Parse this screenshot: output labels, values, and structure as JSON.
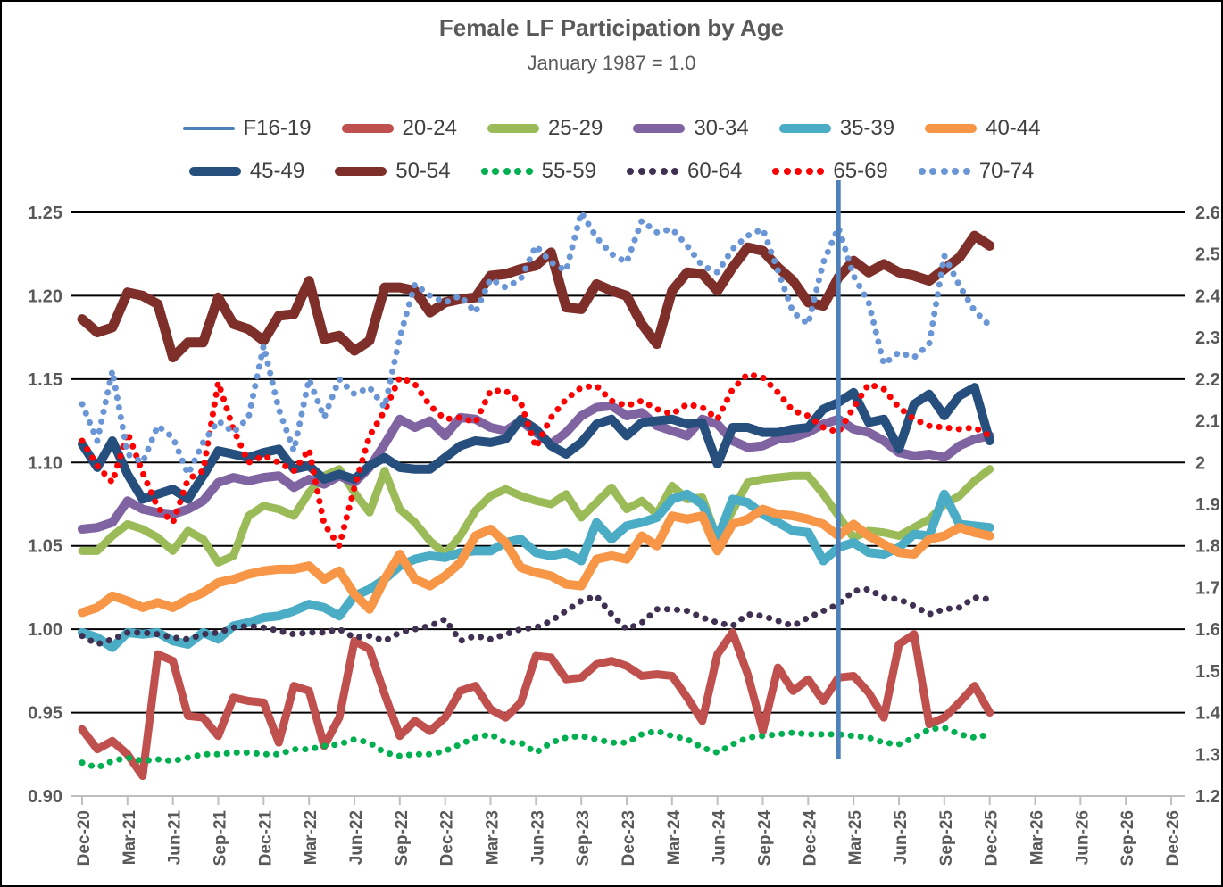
{
  "title": "Female LF Participation by Age",
  "subtitle": "January 1987 = 1.0",
  "axes": {
    "left_tick_labels": [
      "1.25",
      "1.20",
      "1.15",
      "1.10",
      "1.05",
      "1.00",
      "0.95",
      "0.90"
    ],
    "left_min": 0.9,
    "left_max": 1.25,
    "right_tick_labels": [
      "2.6",
      "2.5",
      "2.4",
      "2.3",
      "2.2",
      "2.1",
      "2",
      "1.9",
      "1.8",
      "1.7",
      "1.6",
      "1.5",
      "1.4",
      "1.3",
      "1.2"
    ],
    "x_tick_labels": [
      "Dec-20",
      "Mar-21",
      "Jun-21",
      "Sep-21",
      "Dec-21",
      "Mar-22",
      "Jun-22",
      "Sep-22",
      "Dec-22",
      "Mar-23",
      "Jun-23",
      "Sep-23",
      "Dec-23",
      "Mar-24",
      "Jun-24",
      "Sep-24",
      "Dec-24",
      "Mar-25",
      "Jun-25",
      "Sep-25",
      "Dec-25",
      "Mar-26",
      "Jun-26",
      "Sep-26",
      "Dec-26"
    ],
    "axis_color": "#595959",
    "gridline_color": "#000000",
    "baseline_color": "#bfbfbf"
  },
  "vertical_marker": {
    "at_month": "Feb-25",
    "month_index": 50,
    "color": "#4e80bc"
  },
  "chart_data": {
    "type": "line",
    "x_start": "Dec-20",
    "x_end_data": "Dec-25",
    "x_end_axis": "Dec-26",
    "months_axis_span": 72,
    "data_point_count": 61,
    "title": "Female LF Participation by Age",
    "subtitle": "January 1987 = 1.0",
    "ylim_left": [
      0.9,
      1.25
    ],
    "ylim_right": [
      1.2,
      2.6
    ],
    "grid": "horizontal",
    "legend_position": "top",
    "series": [
      {
        "name": "F16-19",
        "color": "#4e80bc",
        "style": "thin",
        "width": 3,
        "values": []
      },
      {
        "name": "20-24",
        "color": "#c0504d",
        "style": "solid",
        "width": 9,
        "values": [
          0.94,
          0.928,
          0.933,
          0.925,
          0.912,
          0.985,
          0.981,
          0.948,
          0.947,
          0.936,
          0.959,
          0.957,
          0.956,
          0.932,
          0.966,
          0.963,
          0.93,
          0.947,
          0.993,
          0.988,
          0.961,
          0.936,
          0.945,
          0.939,
          0.947,
          0.963,
          0.966,
          0.952,
          0.947,
          0.956,
          0.984,
          0.983,
          0.97,
          0.971,
          0.979,
          0.981,
          0.978,
          0.972,
          0.973,
          0.972,
          0.959,
          0.945,
          0.985,
          0.998,
          0.973,
          0.939,
          0.977,
          0.963,
          0.97,
          0.957,
          0.971,
          0.972,
          0.962,
          0.947,
          0.991,
          0.997,
          0.943,
          0.947,
          0.956,
          0.966,
          0.95
        ]
      },
      {
        "name": "25-29",
        "color": "#9bbb59",
        "style": "solid",
        "width": 9,
        "values": [
          1.047,
          1.047,
          1.056,
          1.063,
          1.06,
          1.055,
          1.047,
          1.059,
          1.054,
          1.04,
          1.044,
          1.068,
          1.074,
          1.072,
          1.068,
          1.082,
          1.092,
          1.096,
          1.082,
          1.07,
          1.095,
          1.072,
          1.064,
          1.053,
          1.045,
          1.056,
          1.071,
          1.08,
          1.084,
          1.08,
          1.077,
          1.075,
          1.081,
          1.067,
          1.076,
          1.085,
          1.072,
          1.077,
          1.069,
          1.086,
          1.078,
          1.079,
          1.054,
          1.071,
          1.088,
          1.09,
          1.091,
          1.092,
          1.092,
          1.081,
          1.068,
          1.055,
          1.059,
          1.058,
          1.056,
          1.061,
          1.066,
          1.075,
          1.08,
          1.089,
          1.096
        ]
      },
      {
        "name": "30-34",
        "color": "#8064a2",
        "style": "solid",
        "width": 10,
        "values": [
          1.06,
          1.061,
          1.064,
          1.077,
          1.072,
          1.07,
          1.069,
          1.072,
          1.077,
          1.088,
          1.091,
          1.089,
          1.091,
          1.092,
          1.085,
          1.09,
          1.087,
          1.092,
          1.088,
          1.097,
          1.111,
          1.126,
          1.121,
          1.125,
          1.116,
          1.127,
          1.126,
          1.121,
          1.119,
          1.125,
          1.118,
          1.111,
          1.118,
          1.128,
          1.133,
          1.134,
          1.128,
          1.13,
          1.122,
          1.119,
          1.116,
          1.126,
          1.123,
          1.113,
          1.109,
          1.11,
          1.114,
          1.115,
          1.118,
          1.123,
          1.126,
          1.12,
          1.118,
          1.113,
          1.106,
          1.104,
          1.105,
          1.103,
          1.11,
          1.114,
          1.116
        ]
      },
      {
        "name": "35-39",
        "color": "#4bacc6",
        "style": "solid",
        "width": 10,
        "values": [
          0.998,
          0.995,
          0.989,
          0.998,
          0.997,
          0.998,
          0.993,
          0.991,
          0.998,
          0.994,
          1.002,
          1.004,
          1.007,
          1.008,
          1.011,
          1.015,
          1.013,
          1.008,
          1.02,
          1.024,
          1.03,
          1.038,
          1.042,
          1.044,
          1.043,
          1.046,
          1.047,
          1.047,
          1.052,
          1.054,
          1.046,
          1.044,
          1.046,
          1.041,
          1.064,
          1.054,
          1.062,
          1.064,
          1.067,
          1.078,
          1.081,
          1.075,
          1.054,
          1.078,
          1.076,
          1.069,
          1.064,
          1.059,
          1.058,
          1.041,
          1.049,
          1.052,
          1.046,
          1.045,
          1.049,
          1.057,
          1.056,
          1.081,
          1.063,
          1.062,
          1.061
        ]
      },
      {
        "name": "40-44",
        "color": "#f79646",
        "style": "solid",
        "width": 10,
        "values": [
          1.01,
          1.013,
          1.02,
          1.017,
          1.013,
          1.016,
          1.013,
          1.018,
          1.022,
          1.028,
          1.03,
          1.033,
          1.035,
          1.036,
          1.036,
          1.038,
          1.03,
          1.035,
          1.021,
          1.012,
          1.03,
          1.045,
          1.03,
          1.026,
          1.032,
          1.04,
          1.056,
          1.06,
          1.052,
          1.037,
          1.034,
          1.032,
          1.027,
          1.026,
          1.042,
          1.044,
          1.042,
          1.056,
          1.05,
          1.068,
          1.066,
          1.068,
          1.047,
          1.063,
          1.066,
          1.072,
          1.069,
          1.068,
          1.066,
          1.063,
          1.056,
          1.063,
          1.056,
          1.051,
          1.046,
          1.045,
          1.054,
          1.056,
          1.061,
          1.058,
          1.056
        ]
      },
      {
        "name": "45-49",
        "color": "#264f7d",
        "style": "solid",
        "width": 10,
        "values": [
          1.111,
          1.097,
          1.113,
          1.093,
          1.078,
          1.081,
          1.084,
          1.078,
          1.092,
          1.107,
          1.105,
          1.103,
          1.106,
          1.108,
          1.096,
          1.098,
          1.09,
          1.093,
          1.09,
          1.098,
          1.103,
          1.097,
          1.096,
          1.096,
          1.103,
          1.11,
          1.113,
          1.112,
          1.114,
          1.126,
          1.12,
          1.11,
          1.105,
          1.112,
          1.123,
          1.126,
          1.116,
          1.124,
          1.125,
          1.126,
          1.123,
          1.124,
          1.099,
          1.121,
          1.121,
          1.118,
          1.118,
          1.12,
          1.121,
          1.132,
          1.136,
          1.142,
          1.124,
          1.126,
          1.108,
          1.135,
          1.141,
          1.128,
          1.14,
          1.145,
          1.113
        ]
      },
      {
        "name": "50-54",
        "color": "#7e2f2a",
        "style": "solid",
        "width": 11,
        "values": [
          1.186,
          1.178,
          1.181,
          1.202,
          1.2,
          1.195,
          1.163,
          1.172,
          1.172,
          1.199,
          1.183,
          1.18,
          1.173,
          1.188,
          1.189,
          1.209,
          1.174,
          1.176,
          1.167,
          1.173,
          1.205,
          1.205,
          1.203,
          1.19,
          1.196,
          1.198,
          1.199,
          1.212,
          1.213,
          1.216,
          1.218,
          1.226,
          1.193,
          1.192,
          1.207,
          1.203,
          1.2,
          1.183,
          1.171,
          1.203,
          1.214,
          1.213,
          1.203,
          1.217,
          1.229,
          1.227,
          1.217,
          1.209,
          1.196,
          1.194,
          1.211,
          1.221,
          1.214,
          1.219,
          1.214,
          1.212,
          1.209,
          1.216,
          1.223,
          1.236,
          1.23
        ]
      },
      {
        "name": "55-59",
        "color": "#00b050",
        "style": "dotted",
        "width": 7,
        "values": [
          0.92,
          0.917,
          0.921,
          0.923,
          0.921,
          0.922,
          0.921,
          0.923,
          0.925,
          0.925,
          0.926,
          0.926,
          0.925,
          0.925,
          0.928,
          0.928,
          0.93,
          0.931,
          0.934,
          0.932,
          0.926,
          0.924,
          0.925,
          0.925,
          0.927,
          0.931,
          0.935,
          0.937,
          0.932,
          0.932,
          0.926,
          0.932,
          0.935,
          0.936,
          0.934,
          0.932,
          0.932,
          0.937,
          0.939,
          0.936,
          0.934,
          0.929,
          0.926,
          0.931,
          0.935,
          0.936,
          0.937,
          0.938,
          0.937,
          0.937,
          0.937,
          0.936,
          0.935,
          0.932,
          0.931,
          0.935,
          0.94,
          0.941,
          0.937,
          0.935,
          0.937
        ]
      },
      {
        "name": "60-64",
        "color": "#403152",
        "style": "dotted",
        "width": 7,
        "values": [
          0.996,
          0.991,
          0.994,
          0.998,
          0.998,
          0.997,
          0.995,
          0.994,
          0.997,
          0.998,
          1.001,
          1.002,
          1.001,
          0.999,
          0.997,
          0.998,
          0.998,
          1.0,
          0.995,
          0.996,
          0.993,
          0.998,
          1.0,
          1.002,
          1.006,
          0.993,
          0.996,
          0.994,
          0.997,
          1.0,
          1.001,
          1.005,
          1.011,
          1.017,
          1.02,
          1.009,
          1.0,
          1.004,
          1.012,
          1.012,
          1.011,
          1.007,
          1.004,
          1.002,
          1.009,
          1.008,
          1.005,
          1.002,
          1.007,
          1.011,
          1.015,
          1.023,
          1.024,
          1.019,
          1.018,
          1.014,
          1.009,
          1.012,
          1.013,
          1.019,
          1.018
        ]
      },
      {
        "name": "65-69",
        "color": "#ff0000",
        "style": "dotted",
        "width": 7,
        "values": [
          1.113,
          1.098,
          1.088,
          1.118,
          1.094,
          1.073,
          1.064,
          1.09,
          1.095,
          1.148,
          1.12,
          1.1,
          1.104,
          1.1,
          1.095,
          1.108,
          1.063,
          1.05,
          1.085,
          1.116,
          1.131,
          1.151,
          1.147,
          1.134,
          1.126,
          1.127,
          1.124,
          1.143,
          1.143,
          1.136,
          1.109,
          1.127,
          1.138,
          1.145,
          1.146,
          1.137,
          1.134,
          1.137,
          1.132,
          1.129,
          1.135,
          1.133,
          1.126,
          1.144,
          1.153,
          1.151,
          1.142,
          1.131,
          1.128,
          1.121,
          1.118,
          1.133,
          1.147,
          1.144,
          1.133,
          1.126,
          1.122,
          1.121,
          1.12,
          1.121,
          1.116
        ]
      },
      {
        "name": "70-74",
        "color": "#6b96d6",
        "style": "dotted",
        "width": 7,
        "values": [
          1.135,
          1.113,
          1.155,
          1.105,
          1.1,
          1.122,
          1.115,
          1.093,
          1.112,
          1.125,
          1.118,
          1.127,
          1.17,
          1.132,
          1.107,
          1.15,
          1.127,
          1.15,
          1.141,
          1.145,
          1.133,
          1.175,
          1.207,
          1.2,
          1.196,
          1.2,
          1.19,
          1.21,
          1.205,
          1.21,
          1.23,
          1.22,
          1.215,
          1.25,
          1.235,
          1.225,
          1.22,
          1.245,
          1.238,
          1.24,
          1.23,
          1.218,
          1.214,
          1.228,
          1.236,
          1.24,
          1.215,
          1.19,
          1.183,
          1.22,
          1.241,
          1.212,
          1.196,
          1.159,
          1.166,
          1.163,
          1.171,
          1.224,
          1.206,
          1.191,
          1.182
        ]
      }
    ]
  }
}
